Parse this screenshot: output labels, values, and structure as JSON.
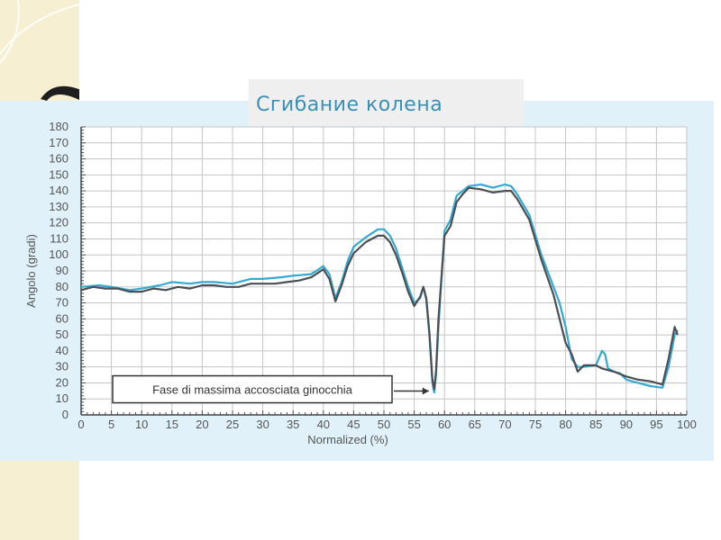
{
  "slide": {
    "title": "Сгибание колена"
  },
  "colors": {
    "series_light": "#35a9cf",
    "series_dark": "#4a4f55",
    "grid": "#c5c5c5",
    "panel": "#e1f1fa",
    "title": "#3b8fb3"
  },
  "chart_data": {
    "type": "line",
    "title": "",
    "xlabel": "Normalized (%)",
    "ylabel": "Angolo (gradi)",
    "xlim": [
      0,
      100
    ],
    "ylim": [
      0,
      180
    ],
    "x_ticks": [
      0,
      5,
      10,
      15,
      20,
      25,
      30,
      35,
      40,
      45,
      50,
      55,
      60,
      65,
      70,
      75,
      80,
      85,
      90,
      95,
      100
    ],
    "y_ticks": [
      0,
      10,
      20,
      30,
      40,
      50,
      60,
      70,
      80,
      90,
      100,
      110,
      120,
      130,
      140,
      150,
      160,
      170,
      180
    ],
    "grid": true,
    "annotation": {
      "text": "Fase di massima accosciata ginocchia",
      "x": 58,
      "y": 16
    },
    "series": [
      {
        "color": "#35a9cf",
        "points": [
          [
            0,
            80
          ],
          [
            3,
            81
          ],
          [
            5,
            80
          ],
          [
            8,
            78
          ],
          [
            10,
            79
          ],
          [
            13,
            81
          ],
          [
            15,
            83
          ],
          [
            18,
            82
          ],
          [
            20,
            83
          ],
          [
            22,
            83
          ],
          [
            25,
            82
          ],
          [
            28,
            85
          ],
          [
            30,
            85
          ],
          [
            33,
            86
          ],
          [
            35,
            87
          ],
          [
            38,
            88
          ],
          [
            40,
            93
          ],
          [
            41,
            88
          ],
          [
            42,
            73
          ],
          [
            43,
            83
          ],
          [
            44,
            96
          ],
          [
            45,
            105
          ],
          [
            47,
            111
          ],
          [
            49,
            116
          ],
          [
            50,
            116
          ],
          [
            51,
            112
          ],
          [
            52,
            104
          ],
          [
            53,
            92
          ],
          [
            54,
            80
          ],
          [
            55,
            70
          ],
          [
            56,
            73
          ],
          [
            56.5,
            80
          ],
          [
            57,
            72
          ],
          [
            57.5,
            50
          ],
          [
            58,
            20
          ],
          [
            58.3,
            14
          ],
          [
            58.6,
            25
          ],
          [
            59,
            55
          ],
          [
            60,
            115
          ],
          [
            61,
            122
          ],
          [
            62,
            137
          ],
          [
            63,
            140
          ],
          [
            64,
            143
          ],
          [
            66,
            144
          ],
          [
            68,
            142
          ],
          [
            70,
            144
          ],
          [
            71,
            143
          ],
          [
            72,
            138
          ],
          [
            74,
            125
          ],
          [
            76,
            100
          ],
          [
            78,
            80
          ],
          [
            79,
            70
          ],
          [
            80,
            55
          ],
          [
            81,
            35
          ],
          [
            82,
            30
          ],
          [
            83,
            30
          ],
          [
            85,
            31
          ],
          [
            86,
            40
          ],
          [
            86.5,
            38
          ],
          [
            87,
            29
          ],
          [
            88,
            27
          ],
          [
            89,
            26
          ],
          [
            90,
            22
          ],
          [
            92,
            20
          ],
          [
            94,
            18
          ],
          [
            96,
            17
          ],
          [
            97,
            30
          ],
          [
            98,
            50
          ],
          [
            98.5,
            53
          ]
        ]
      },
      {
        "color": "#4a4f55",
        "points": [
          [
            0,
            78
          ],
          [
            2,
            80
          ],
          [
            4,
            79
          ],
          [
            6,
            79
          ],
          [
            8,
            77
          ],
          [
            10,
            77
          ],
          [
            12,
            79
          ],
          [
            14,
            78
          ],
          [
            16,
            80
          ],
          [
            18,
            79
          ],
          [
            20,
            81
          ],
          [
            22,
            81
          ],
          [
            24,
            80
          ],
          [
            26,
            80
          ],
          [
            28,
            82
          ],
          [
            30,
            82
          ],
          [
            32,
            82
          ],
          [
            34,
            83
          ],
          [
            36,
            84
          ],
          [
            38,
            86
          ],
          [
            40,
            91
          ],
          [
            41,
            85
          ],
          [
            42,
            71
          ],
          [
            43,
            81
          ],
          [
            44,
            93
          ],
          [
            45,
            101
          ],
          [
            47,
            108
          ],
          [
            49,
            112
          ],
          [
            50,
            112
          ],
          [
            51,
            108
          ],
          [
            52,
            100
          ],
          [
            53,
            89
          ],
          [
            54,
            77
          ],
          [
            55,
            68
          ],
          [
            56,
            74
          ],
          [
            56.5,
            80
          ],
          [
            57,
            73
          ],
          [
            57.5,
            52
          ],
          [
            58,
            22
          ],
          [
            58.3,
            16
          ],
          [
            58.6,
            27
          ],
          [
            59,
            60
          ],
          [
            60,
            112
          ],
          [
            61,
            118
          ],
          [
            62,
            133
          ],
          [
            63,
            138
          ],
          [
            64,
            142
          ],
          [
            66,
            141
          ],
          [
            68,
            139
          ],
          [
            70,
            140
          ],
          [
            71,
            140
          ],
          [
            72,
            135
          ],
          [
            74,
            122
          ],
          [
            76,
            97
          ],
          [
            78,
            75
          ],
          [
            79,
            60
          ],
          [
            80,
            45
          ],
          [
            81,
            38
          ],
          [
            82,
            27
          ],
          [
            83,
            31
          ],
          [
            85,
            31
          ],
          [
            86,
            29
          ],
          [
            87,
            28
          ],
          [
            88,
            27
          ],
          [
            90,
            24
          ],
          [
            92,
            22
          ],
          [
            94,
            21
          ],
          [
            96,
            19
          ],
          [
            97,
            35
          ],
          [
            98,
            55
          ],
          [
            98.5,
            50
          ]
        ]
      }
    ]
  }
}
